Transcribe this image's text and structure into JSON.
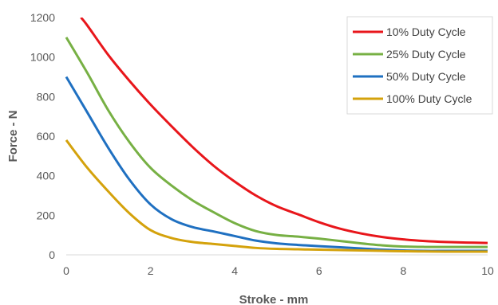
{
  "chart_data": {
    "type": "line",
    "title": "",
    "xlabel": "Stroke - mm",
    "ylabel": "Force - N",
    "xlim": [
      0,
      10
    ],
    "ylim": [
      0,
      1200
    ],
    "xticks": [
      0,
      2,
      4,
      6,
      8,
      10
    ],
    "yticks": [
      0,
      200,
      400,
      600,
      800,
      1000,
      1200
    ],
    "grid": false,
    "legend_position": "top-right",
    "series": [
      {
        "name": "10% Duty Cycle",
        "color": "#e8161b",
        "x": [
          0.35,
          0.5,
          1,
          1.5,
          2,
          2.5,
          3,
          3.5,
          4,
          4.5,
          5,
          5.5,
          6,
          6.5,
          7,
          7.5,
          8,
          8.5,
          9,
          9.5,
          10
        ],
        "y": [
          1200,
          1160,
          1010,
          880,
          760,
          650,
          545,
          450,
          370,
          300,
          245,
          205,
          165,
          132,
          108,
          90,
          78,
          70,
          65,
          62,
          60
        ]
      },
      {
        "name": "25% Duty Cycle",
        "color": "#77b044",
        "x": [
          0,
          0.5,
          1,
          1.5,
          2,
          2.5,
          3,
          3.5,
          4,
          4.5,
          5,
          5.5,
          6,
          6.5,
          7,
          7.5,
          8,
          8.5,
          9,
          9.5,
          10
        ],
        "y": [
          1100,
          920,
          730,
          570,
          440,
          350,
          275,
          215,
          160,
          120,
          100,
          92,
          82,
          70,
          58,
          48,
          42,
          40,
          40,
          40,
          40
        ]
      },
      {
        "name": "50% Duty Cycle",
        "color": "#1f70c1",
        "x": [
          0,
          0.5,
          1,
          1.5,
          2,
          2.5,
          3,
          3.5,
          4,
          4.5,
          5,
          5.5,
          6,
          6.5,
          7,
          7.5,
          8,
          8.5,
          9,
          9.5,
          10
        ],
        "y": [
          900,
          720,
          540,
          380,
          255,
          180,
          140,
          118,
          95,
          72,
          58,
          50,
          44,
          38,
          32,
          26,
          22,
          20,
          20,
          20,
          20
        ]
      },
      {
        "name": "100% Duty Cycle",
        "color": "#d4a20c",
        "x": [
          0,
          0.5,
          1,
          1.5,
          2,
          2.5,
          3,
          3.5,
          4,
          4.5,
          5,
          5.5,
          6,
          6.5,
          7,
          7.5,
          8,
          8.5,
          9,
          9.5,
          10
        ],
        "y": [
          580,
          440,
          320,
          210,
          125,
          85,
          65,
          55,
          45,
          35,
          30,
          28,
          26,
          24,
          22,
          20,
          18,
          17,
          16,
          16,
          16
        ]
      }
    ]
  }
}
